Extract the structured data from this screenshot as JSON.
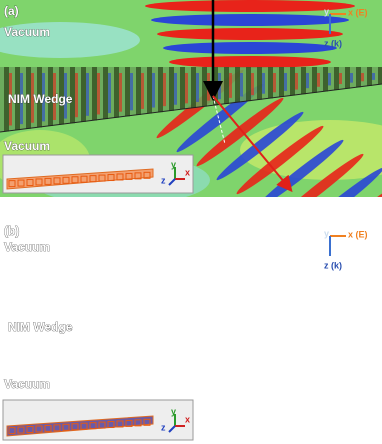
{
  "panels": [
    {
      "label": "(a)",
      "regions": [
        "Vacuum",
        "NIM Wedge",
        "Vacuum"
      ],
      "axes": {
        "y": "y",
        "x": "x (E)",
        "z": "z (k)"
      },
      "inset_axes": {
        "y": "y",
        "z": "z",
        "x": "x"
      }
    },
    {
      "label": "(b)",
      "regions": [
        "Vacuum",
        "NIM Wedge",
        "Vacuum"
      ],
      "axes": {
        "y": "y",
        "x": "x (E)",
        "z": "z (k)"
      },
      "inset_axes": {
        "y": "y",
        "z": "z",
        "x": "x"
      }
    }
  ]
}
